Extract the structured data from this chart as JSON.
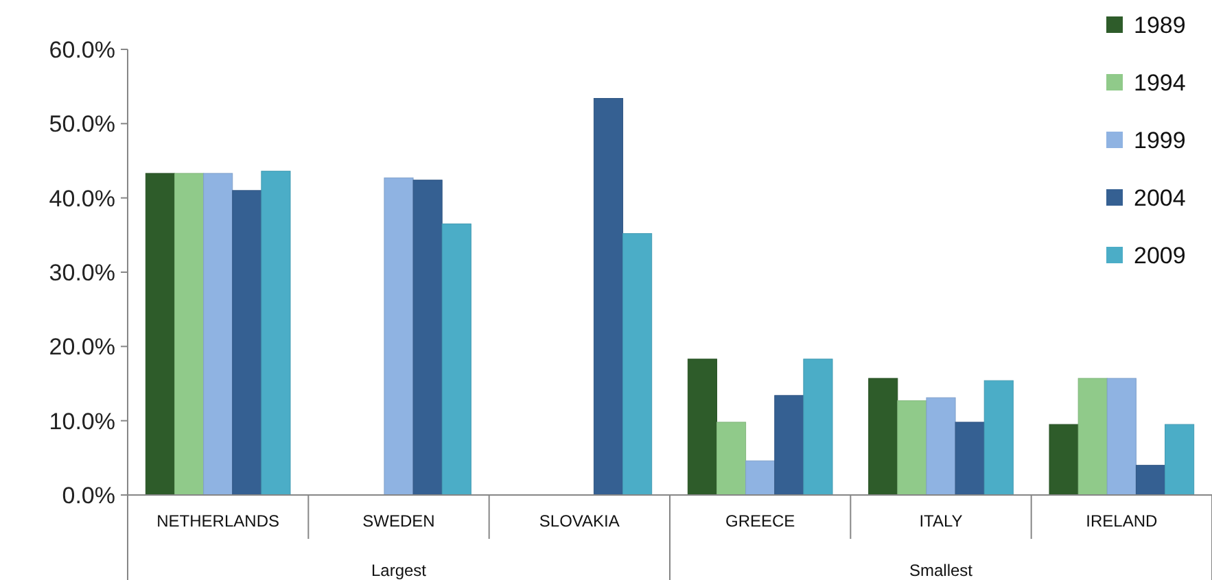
{
  "chart_data": {
    "type": "bar",
    "categories": [
      "NETHERLANDS",
      "SWEDEN",
      "SLOVAKIA",
      "GREECE",
      "ITALY",
      "IRELAND"
    ],
    "series": [
      {
        "name": "1989",
        "color": "#2e5c2a",
        "values": [
          43.3,
          null,
          null,
          18.3,
          15.7,
          9.5
        ]
      },
      {
        "name": "1994",
        "color": "#90ca8a",
        "values": [
          43.3,
          null,
          null,
          9.8,
          12.7,
          15.7
        ]
      },
      {
        "name": "1999",
        "color": "#8fb3e2",
        "values": [
          43.3,
          42.7,
          null,
          4.6,
          13.1,
          15.7
        ]
      },
      {
        "name": "2004",
        "color": "#356092",
        "values": [
          41.0,
          42.4,
          53.4,
          13.4,
          9.8,
          4.0
        ]
      },
      {
        "name": "2009",
        "color": "#4badc7",
        "values": [
          43.6,
          36.5,
          35.2,
          18.3,
          15.4,
          9.5
        ]
      }
    ],
    "ylim": [
      0,
      60
    ],
    "yticks": [
      {
        "value": 0,
        "label": "0.0%"
      },
      {
        "value": 10,
        "label": "10.0%"
      },
      {
        "value": 20,
        "label": "20.0%"
      },
      {
        "value": 30,
        "label": "30.0%"
      },
      {
        "value": 40,
        "label": "40.0%"
      },
      {
        "value": 50,
        "label": "50.0%"
      },
      {
        "value": 60,
        "label": "60.0%"
      }
    ],
    "annotations": [
      "Largest",
      "Smallest"
    ],
    "grid": false,
    "legend": "top right"
  }
}
